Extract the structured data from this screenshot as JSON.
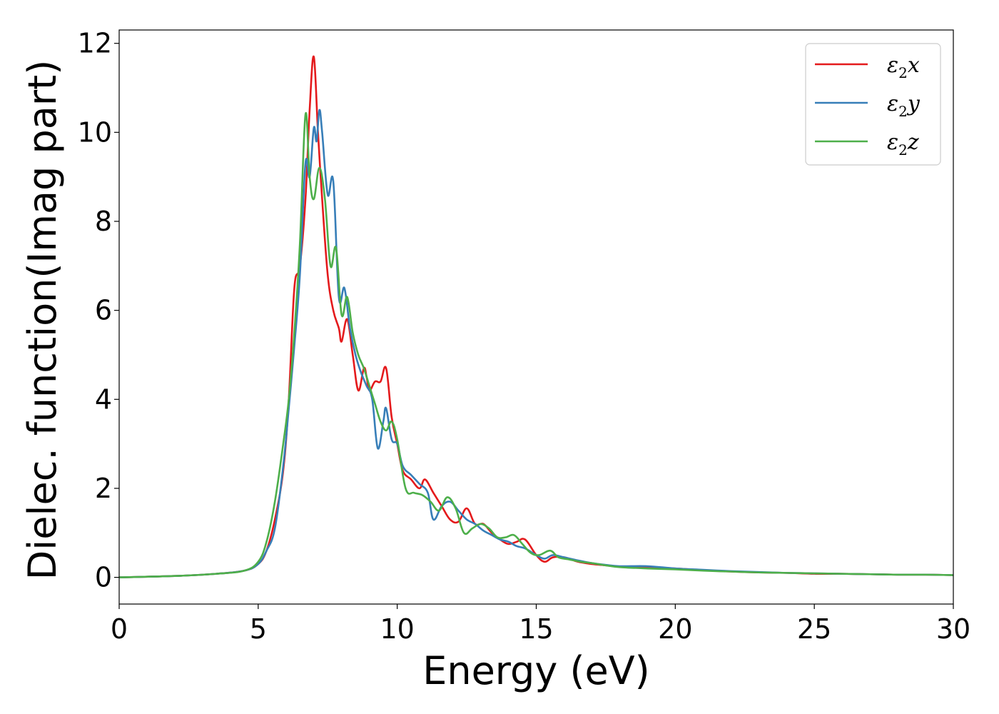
{
  "chart_data": {
    "type": "line",
    "title": "",
    "xlabel": "Energy (eV)",
    "ylabel": "Dielec. function(Imag part)",
    "xlim": [
      0,
      30
    ],
    "ylim": [
      -0.6,
      12.3
    ],
    "xticks": [
      0,
      5,
      10,
      15,
      20,
      25,
      30
    ],
    "yticks": [
      0,
      2,
      4,
      6,
      8,
      10,
      12
    ],
    "grid": false,
    "legend_position": "top-right",
    "series": [
      {
        "name": "ε2x",
        "legend": {
          "base": "ε",
          "sub": "2",
          "suffix": "x"
        },
        "color": "#e41a1c",
        "x": [
          0,
          2,
          3.5,
          4.5,
          5.0,
          5.3,
          5.6,
          5.9,
          6.1,
          6.3,
          6.5,
          6.7,
          6.85,
          7.0,
          7.15,
          7.3,
          7.5,
          7.7,
          7.9,
          8.0,
          8.2,
          8.4,
          8.6,
          8.8,
          8.9,
          9.0,
          9.2,
          9.4,
          9.6,
          9.8,
          10.0,
          10.2,
          10.5,
          10.8,
          11.0,
          11.3,
          11.6,
          11.9,
          12.2,
          12.5,
          12.8,
          13.1,
          13.4,
          13.7,
          14.0,
          14.3,
          14.6,
          15.0,
          15.3,
          15.6,
          16.0,
          16.5,
          17.0,
          17.5,
          18.0,
          19.0,
          20.0,
          21.0,
          22.0,
          23.0,
          24.0,
          25.0,
          26.0,
          27.0,
          28.0,
          29.0,
          30.0
        ],
        "values": [
          0.0,
          0.03,
          0.08,
          0.15,
          0.3,
          0.6,
          1.3,
          2.4,
          4.0,
          6.5,
          7.0,
          8.5,
          10.5,
          11.7,
          10.0,
          8.5,
          6.8,
          6.0,
          5.6,
          5.3,
          5.8,
          5.0,
          4.2,
          4.7,
          4.5,
          4.2,
          4.4,
          4.4,
          4.7,
          3.6,
          3.0,
          2.4,
          2.2,
          2.0,
          2.2,
          1.9,
          1.6,
          1.3,
          1.25,
          1.55,
          1.2,
          1.2,
          1.0,
          0.85,
          0.75,
          0.8,
          0.85,
          0.5,
          0.35,
          0.45,
          0.45,
          0.35,
          0.3,
          0.27,
          0.24,
          0.22,
          0.2,
          0.16,
          0.13,
          0.11,
          0.1,
          0.08,
          0.08,
          0.07,
          0.06,
          0.06,
          0.05
        ]
      },
      {
        "name": "ε2y",
        "legend": {
          "base": "ε",
          "sub": "2",
          "suffix": "y"
        },
        "color": "#377eb8",
        "x": [
          0,
          2,
          3.5,
          4.5,
          5.0,
          5.3,
          5.6,
          5.9,
          6.1,
          6.3,
          6.5,
          6.7,
          6.85,
          7.0,
          7.1,
          7.2,
          7.3,
          7.5,
          7.7,
          7.9,
          8.1,
          8.3,
          8.5,
          8.7,
          8.9,
          9.1,
          9.3,
          9.5,
          9.6,
          9.8,
          10.0,
          10.2,
          10.5,
          10.8,
          11.1,
          11.3,
          11.6,
          11.9,
          12.2,
          12.5,
          12.8,
          13.1,
          13.4,
          13.7,
          14.0,
          14.3,
          14.6,
          15.0,
          15.3,
          15.6,
          16.0,
          16.5,
          17.0,
          17.5,
          18.0,
          19.0,
          20.0,
          21.0,
          22.0,
          23.0,
          24.0,
          25.0,
          26.0,
          27.0,
          28.0,
          29.0,
          30.0
        ],
        "values": [
          0.0,
          0.03,
          0.08,
          0.15,
          0.3,
          0.6,
          1.1,
          2.5,
          3.8,
          5.2,
          6.8,
          9.3,
          9.0,
          10.1,
          9.8,
          10.5,
          10.0,
          8.6,
          8.9,
          6.3,
          6.5,
          5.6,
          5.0,
          4.6,
          4.3,
          4.0,
          2.9,
          3.5,
          3.8,
          3.1,
          3.0,
          2.5,
          2.3,
          2.1,
          1.9,
          1.3,
          1.6,
          1.7,
          1.5,
          1.3,
          1.2,
          1.05,
          0.95,
          0.85,
          0.8,
          0.7,
          0.65,
          0.5,
          0.42,
          0.5,
          0.45,
          0.38,
          0.32,
          0.28,
          0.25,
          0.25,
          0.2,
          0.17,
          0.14,
          0.12,
          0.1,
          0.09,
          0.08,
          0.07,
          0.06,
          0.06,
          0.05
        ]
      },
      {
        "name": "ε2z",
        "legend": {
          "base": "ε",
          "sub": "2",
          "suffix": "z"
        },
        "color": "#4daf4a",
        "x": [
          0,
          2,
          3.5,
          4.5,
          5.0,
          5.3,
          5.6,
          5.9,
          6.1,
          6.3,
          6.5,
          6.7,
          6.85,
          7.0,
          7.2,
          7.4,
          7.6,
          7.8,
          8.0,
          8.2,
          8.4,
          8.6,
          8.8,
          9.0,
          9.2,
          9.4,
          9.6,
          9.8,
          10.0,
          10.3,
          10.6,
          10.9,
          11.2,
          11.5,
          11.8,
          12.1,
          12.4,
          12.7,
          13.0,
          13.3,
          13.6,
          13.9,
          14.2,
          14.5,
          14.8,
          15.1,
          15.5,
          15.8,
          16.2,
          16.6,
          17.0,
          17.5,
          18.0,
          19.0,
          20.0,
          21.0,
          22.0,
          23.0,
          24.0,
          25.0,
          26.0,
          27.0,
          28.0,
          29.0,
          30.0
        ],
        "values": [
          0.0,
          0.03,
          0.08,
          0.15,
          0.35,
          0.8,
          1.7,
          3.0,
          4.0,
          5.5,
          7.5,
          10.4,
          9.0,
          8.5,
          9.2,
          8.5,
          7.0,
          7.4,
          5.9,
          6.3,
          5.5,
          5.0,
          4.7,
          4.3,
          3.9,
          3.5,
          3.3,
          3.5,
          3.1,
          2.0,
          1.9,
          1.85,
          1.7,
          1.5,
          1.8,
          1.55,
          1.0,
          1.1,
          1.2,
          1.1,
          0.9,
          0.9,
          0.95,
          0.75,
          0.55,
          0.5,
          0.6,
          0.45,
          0.4,
          0.35,
          0.32,
          0.27,
          0.23,
          0.2,
          0.18,
          0.15,
          0.13,
          0.11,
          0.1,
          0.09,
          0.08,
          0.07,
          0.06,
          0.06,
          0.05
        ]
      }
    ]
  }
}
